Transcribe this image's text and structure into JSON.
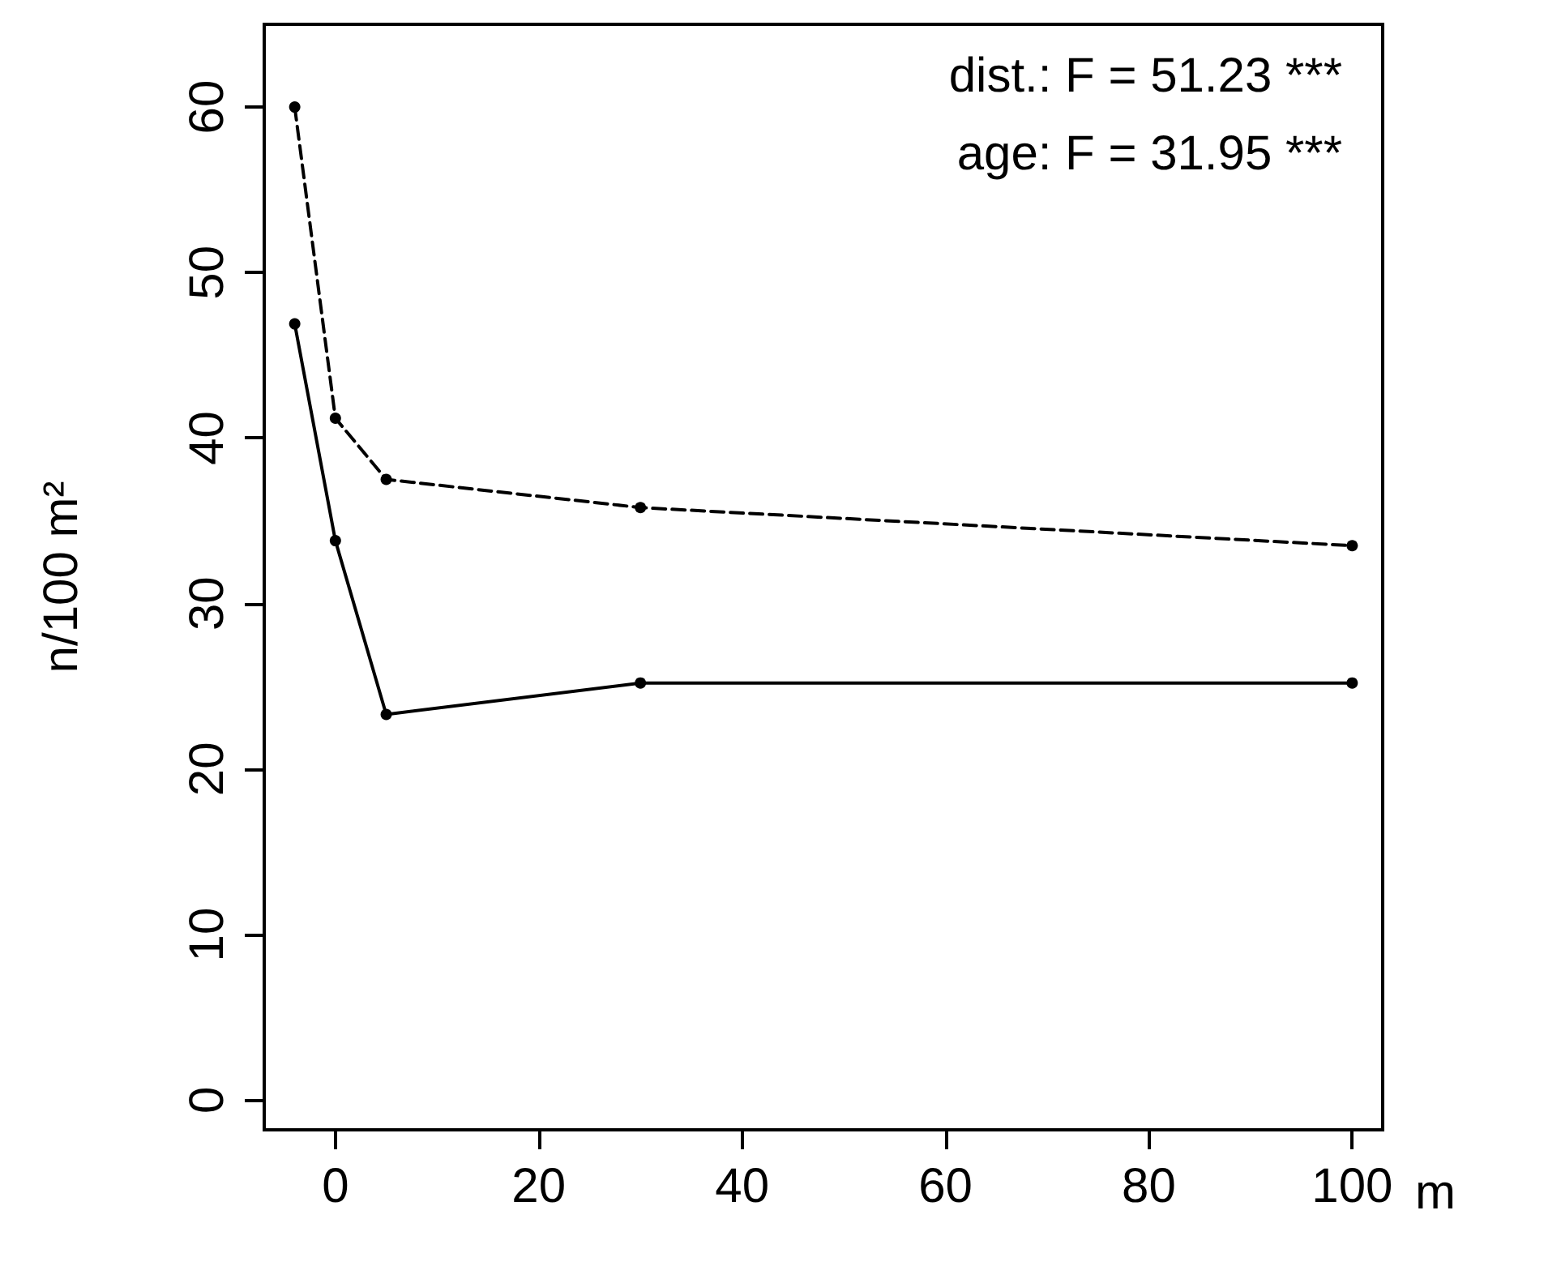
{
  "chart_data": {
    "type": "line",
    "ylabel": "n/100 m²",
    "xlabel": "m",
    "x": [
      -4,
      0,
      5,
      30,
      100
    ],
    "series": [
      {
        "color": "#000000",
        "line_style": "dashed",
        "values": [
          60,
          41.2,
          37.5,
          35.8,
          33.5
        ]
      },
      {
        "color": "#000000",
        "line_style": "solid",
        "values": [
          46.9,
          33.8,
          23.3,
          25.2,
          25.2
        ]
      }
    ],
    "xlim": [
      -7,
      103
    ],
    "xticks": [
      0,
      20,
      40,
      60,
      80,
      100
    ],
    "ylim": [
      -1.8,
      65
    ],
    "yticks": [
      0,
      10,
      20,
      30,
      40,
      50,
      60
    ],
    "marker": "circle",
    "grid": false,
    "annotations": [
      "dist.: F = 51.23 ***",
      "age: F = 31.95 ***"
    ]
  }
}
